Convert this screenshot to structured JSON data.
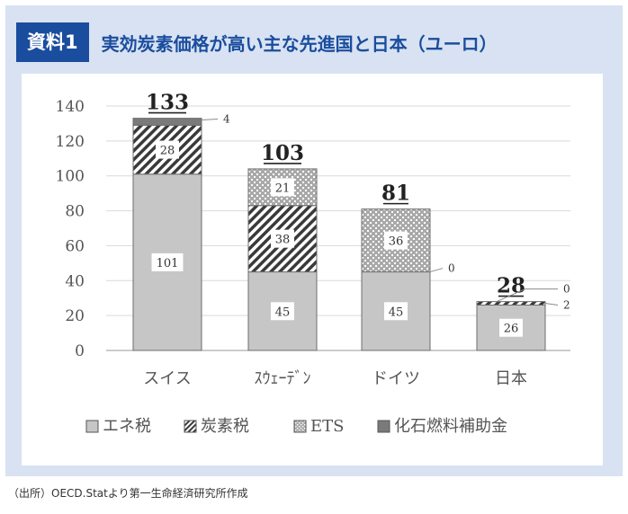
{
  "header": {
    "tag": "資料1",
    "title": "実効炭素価格が高い主な先進国と日本（ユーロ）"
  },
  "source": "（出所）OECD.Statより第一生命経済研究所作成",
  "colors": {
    "frame_bg": "#d8e2f2",
    "accent": "#1a4d9e",
    "energy_tax_fill": "#c6c6c6",
    "subsidy_fill": "#7a7a7a",
    "bar_border": "#6e6e6e"
  },
  "chart_data": {
    "type": "bar",
    "stacked": true,
    "categories": [
      "スイス",
      "ｽｳｪｰﾃﾞﾝ",
      "ドイツ",
      "日本"
    ],
    "series": [
      {
        "name": "エネ税",
        "values": [
          101,
          45,
          45,
          26
        ],
        "labels": [
          "101",
          "45",
          "45",
          "26"
        ],
        "pattern": "solid-light-gray"
      },
      {
        "name": "炭素税",
        "values": [
          28,
          38,
          0,
          2
        ],
        "labels": [
          "28",
          "38",
          "0",
          "2"
        ],
        "pattern": "diagonal-hatch"
      },
      {
        "name": "ETS",
        "values": [
          0,
          21,
          36,
          0
        ],
        "labels": [
          "",
          "21",
          "36",
          "0"
        ],
        "pattern": "dots"
      },
      {
        "name": "化石燃料補助金",
        "values": [
          4,
          0,
          0,
          0
        ],
        "labels": [
          "4",
          "",
          "",
          ""
        ],
        "pattern": "solid-dark-gray"
      }
    ],
    "totals": [
      "133",
      "103",
      "81",
      "28"
    ],
    "ylim": [
      0,
      140
    ],
    "yticks": [
      "0",
      "20",
      "40",
      "60",
      "80",
      "100",
      "120",
      "140"
    ],
    "grid": true,
    "legend_position": "bottom",
    "title": "",
    "xlabel": "",
    "ylabel": ""
  }
}
